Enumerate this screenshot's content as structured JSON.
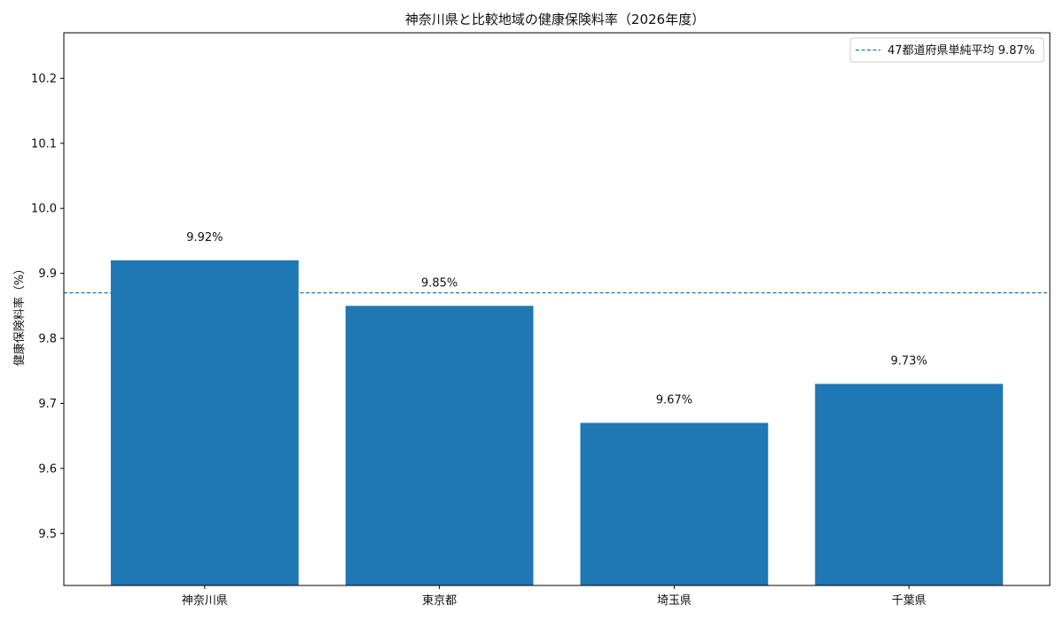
{
  "chart_data": {
    "type": "bar",
    "title": "神奈川県と比較地域の健康保険料率（2026年度）",
    "xlabel": "",
    "ylabel": "健康保険料率（%）",
    "categories": [
      "神奈川県",
      "東京都",
      "埼玉県",
      "千葉県"
    ],
    "values": [
      9.92,
      9.85,
      9.67,
      9.73
    ],
    "value_labels": [
      "9.92%",
      "9.85%",
      "9.67%",
      "9.73%"
    ],
    "ylim": [
      9.42,
      10.27
    ],
    "yticks": [
      9.5,
      9.6,
      9.7,
      9.8,
      9.9,
      10.0,
      10.1,
      10.2
    ],
    "ytick_labels": [
      "9.5",
      "9.6",
      "9.7",
      "9.8",
      "9.9",
      "10.0",
      "10.1",
      "10.2"
    ],
    "reference_line": {
      "value": 9.87,
      "label": "47都道府県単純平均 9.87%",
      "style": "dashed"
    },
    "bar_color": "#1f77b4",
    "line_color": "#1f77b4",
    "legend_position": "top-right",
    "grid": false
  }
}
